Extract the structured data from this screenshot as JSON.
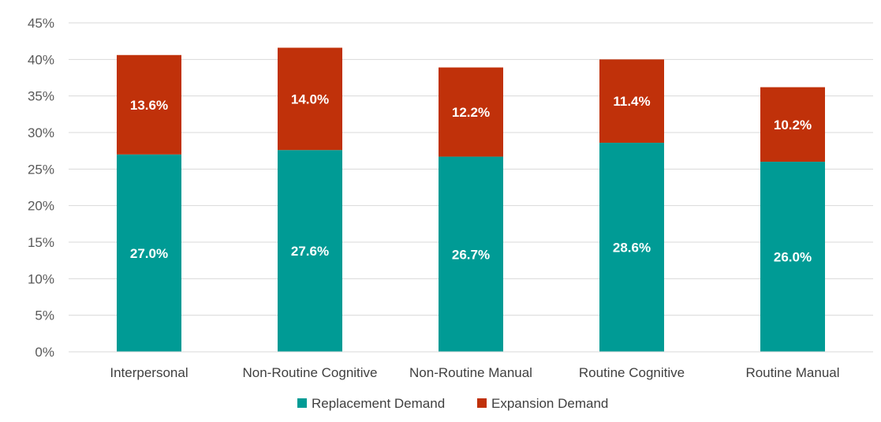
{
  "chart_data": {
    "type": "bar",
    "stacked": true,
    "categories": [
      "Interpersonal",
      "Non-Routine Cognitive",
      "Non-Routine Manual",
      "Routine Cognitive",
      "Routine Manual"
    ],
    "series": [
      {
        "name": "Replacement Demand",
        "color": "#009B95",
        "values": [
          27.0,
          27.6,
          26.7,
          28.6,
          26.0
        ],
        "labels": [
          "27.0%",
          "27.6%",
          "26.7%",
          "28.6%",
          "26.0%"
        ]
      },
      {
        "name": "Expansion Demand",
        "color": "#C0310A",
        "values": [
          13.6,
          14.0,
          12.2,
          11.4,
          10.2
        ],
        "labels": [
          "13.6%",
          "14.0%",
          "12.2%",
          "11.4%",
          "10.2%"
        ]
      }
    ],
    "ylim": [
      0,
      45
    ],
    "yticks": [
      0,
      5,
      10,
      15,
      20,
      25,
      30,
      35,
      40,
      45
    ],
    "ytick_labels": [
      "0%",
      "5%",
      "10%",
      "15%",
      "20%",
      "25%",
      "30%",
      "35%",
      "40%",
      "45%"
    ],
    "grid": true,
    "gridline_color": "#D9D9D9",
    "legend_position": "bottom"
  }
}
